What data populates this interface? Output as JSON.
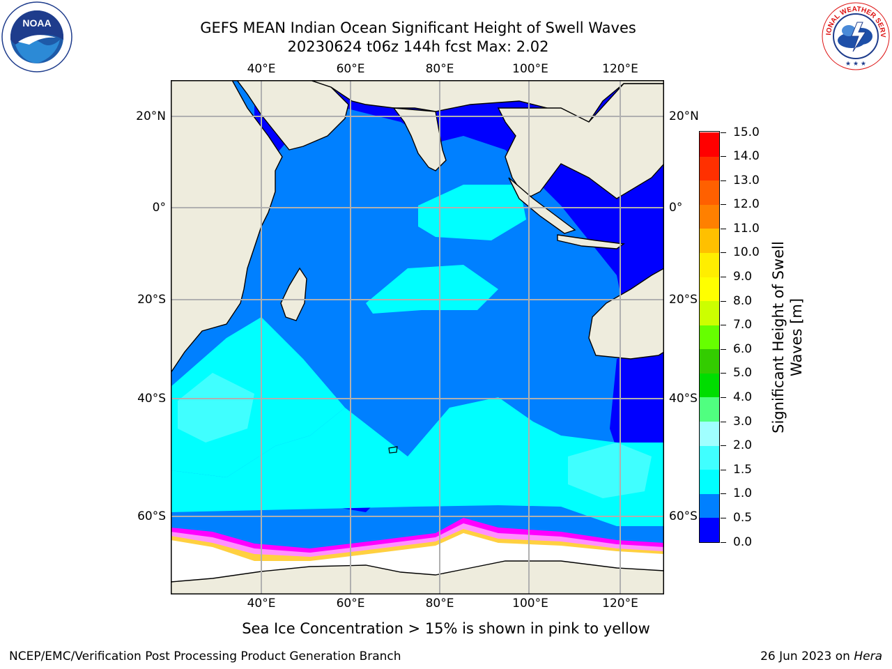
{
  "header": {
    "title_line1": "GEFS MEAN Indian Ocean Significant Height of Swell Waves",
    "title_line2": "20230624 t06z 144h fcst   Max: 2.02"
  },
  "logos": {
    "noaa": {
      "text": "NOAA",
      "ring_text": "NATIONAL OCEANIC AND ATMOSPHERIC ADMINISTRATION · U.S. DEPARTMENT OF COMMERCE"
    },
    "nws": {
      "ring_text": "NATIONAL WEATHER SERVICE"
    }
  },
  "map": {
    "lon_labels": [
      "40°E",
      "60°E",
      "80°E",
      "100°E",
      "120°E"
    ],
    "lat_labels_left": [
      "20°N",
      "0°",
      "20°S",
      "40°S",
      "60°S"
    ],
    "lat_labels_right": [
      "20°N",
      "0°",
      "20°S",
      "40°S",
      "60°S"
    ],
    "colors": {
      "land": "#eeecdd",
      "ice_white": "#ffffff",
      "sea_ice_edge": [
        "#ff00ff",
        "#ff80ff",
        "#ffd040",
        "#ffb000"
      ],
      "grid": "#b0b0b0"
    }
  },
  "colorbar": {
    "title_line1": "Significant Height of Swell",
    "title_line2": "Waves [m]",
    "tick_labels": [
      "0.0",
      "0.5",
      "1.0",
      "1.5",
      "2.0",
      "3.0",
      "4.0",
      "5.0",
      "6.0",
      "7.0",
      "8.0",
      "9.0",
      "10.0",
      "11.0",
      "12.0",
      "13.0",
      "14.0",
      "15.0"
    ],
    "colors": [
      "#0000ff",
      "#0080ff",
      "#00ffff",
      "#40ffff",
      "#a0ffff",
      "#50ff80",
      "#00dd00",
      "#33cc00",
      "#66ff00",
      "#ccff00",
      "#ffff00",
      "#ffee00",
      "#ffc000",
      "#ff8000",
      "#ff6000",
      "#ff3000",
      "#ff0000"
    ]
  },
  "footnote": "Sea Ice Concentration > 15% is shown in pink to yellow",
  "footer": {
    "left": "NCEP/EMC/Verification Post Processing Product Generation Branch",
    "right_prefix": "26 Jun 2023 on ",
    "right_machine": "Hera"
  }
}
